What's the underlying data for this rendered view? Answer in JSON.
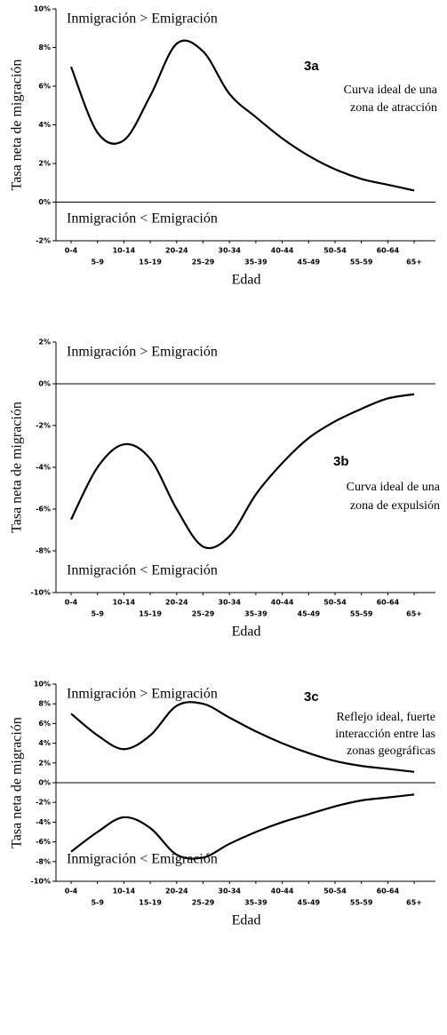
{
  "chart_data": [
    {
      "type": "line",
      "label": "3a",
      "note": [
        "Curva ideal de una",
        "zona de atracción"
      ],
      "upper_text": "Inmigración > Emigración",
      "lower_text": "Inmigración < Emigración",
      "y_label": "Tasa neta de migración",
      "x_label": "Edad",
      "zero_line": true,
      "categories": [
        "0-4",
        "5-9",
        "10-14",
        "15-19",
        "20-24",
        "25-29",
        "30-34",
        "35-39",
        "40-44",
        "45-49",
        "50-54",
        "55-59",
        "60-64",
        "65+"
      ],
      "series": [
        {
          "color": "#000000",
          "values": [
            7.0,
            3.6,
            3.2,
            5.5,
            8.2,
            7.8,
            5.6,
            4.4,
            3.3,
            2.4,
            1.7,
            1.2,
            0.9,
            0.6
          ]
        }
      ],
      "ylim": [
        -2,
        10
      ],
      "yticks": [
        {
          "value": -2,
          "label": "-2%"
        },
        {
          "value": 0,
          "label": "0%"
        },
        {
          "value": 2,
          "label": "2%"
        },
        {
          "value": 4,
          "label": "4%"
        },
        {
          "value": 6,
          "label": "6%"
        },
        {
          "value": 8,
          "label": "8%"
        },
        {
          "value": 10,
          "label": "10%"
        }
      ]
    },
    {
      "type": "line",
      "label": "3b",
      "note": [
        "Curva ideal de una",
        "zona de expulsión"
      ],
      "upper_text": "Inmigración > Emigración",
      "lower_text": "Inmigración < Emigración",
      "y_label": "Tasa neta de migración",
      "x_label": "Edad",
      "zero_line": true,
      "categories": [
        "0-4",
        "5-9",
        "10-14",
        "15-19",
        "20-24",
        "25-29",
        "30-34",
        "35-39",
        "40-44",
        "45-49",
        "50-54",
        "55-59",
        "60-64",
        "65+"
      ],
      "series": [
        {
          "color": "#000000",
          "values": [
            -6.5,
            -4.0,
            -2.9,
            -3.6,
            -6.0,
            -7.8,
            -7.3,
            -5.3,
            -3.8,
            -2.6,
            -1.8,
            -1.2,
            -0.7,
            -0.5
          ]
        }
      ],
      "ylim": [
        -10,
        2
      ],
      "yticks": [
        {
          "value": -10,
          "label": "-10%"
        },
        {
          "value": -8,
          "label": "-8%"
        },
        {
          "value": -6,
          "label": "-6%"
        },
        {
          "value": -4,
          "label": "-4%"
        },
        {
          "value": -2,
          "label": "-2%"
        },
        {
          "value": 0,
          "label": "0%"
        },
        {
          "value": 2,
          "label": "2%"
        }
      ]
    },
    {
      "type": "line",
      "label": "3c",
      "note": [
        "Reflejo ideal, fuerte",
        "interacción entre las",
        "zonas geográficas"
      ],
      "upper_text": "Inmigración > Emigración",
      "lower_text": "Inmigración < Emigración",
      "y_label": "Tasa neta de migración",
      "x_label": "Edad",
      "zero_line": true,
      "categories": [
        "0-4",
        "5-9",
        "10-14",
        "15-19",
        "20-24",
        "25-29",
        "30-34",
        "35-39",
        "40-44",
        "45-49",
        "50-54",
        "55-59",
        "60-64",
        "65+"
      ],
      "series": [
        {
          "color": "#000000",
          "values": [
            7.0,
            4.8,
            3.4,
            4.8,
            7.8,
            8.0,
            6.6,
            5.2,
            4.0,
            3.0,
            2.2,
            1.7,
            1.4,
            1.1
          ]
        },
        {
          "color": "#000000",
          "values": [
            -7.0,
            -5.0,
            -3.5,
            -4.6,
            -7.3,
            -7.6,
            -6.2,
            -5.0,
            -4.0,
            -3.2,
            -2.4,
            -1.8,
            -1.5,
            -1.2
          ]
        }
      ],
      "ylim": [
        -10,
        10
      ],
      "yticks": [
        {
          "value": -10,
          "label": "-10%"
        },
        {
          "value": -8,
          "label": "-8%"
        },
        {
          "value": -6,
          "label": "-6%"
        },
        {
          "value": -4,
          "label": "-4%"
        },
        {
          "value": -2,
          "label": "-2%"
        },
        {
          "value": 0,
          "label": "0%"
        },
        {
          "value": 2,
          "label": "2%"
        },
        {
          "value": 4,
          "label": "4%"
        },
        {
          "value": 6,
          "label": "6%"
        },
        {
          "value": 8,
          "label": "8%"
        },
        {
          "value": 10,
          "label": "10%"
        }
      ]
    }
  ]
}
